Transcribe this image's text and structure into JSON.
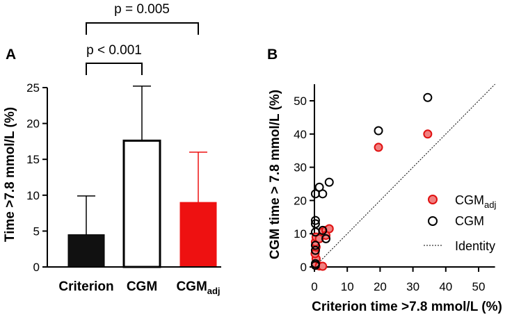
{
  "chart_data": [
    {
      "panel": "A",
      "type": "bar",
      "categories": [
        "Criterion",
        "CGM",
        "CGM_adj"
      ],
      "category_labels": [
        {
          "main": "Criterion",
          "sub": ""
        },
        {
          "main": "CGM",
          "sub": ""
        },
        {
          "main": "CGM",
          "sub": "adj"
        }
      ],
      "values": [
        4.5,
        17.6,
        9.0
      ],
      "error_upper": [
        9.9,
        25.2,
        16.0
      ],
      "colors": [
        "#111111",
        "#ffffff",
        "#ee1111"
      ],
      "edge_colors": [
        "#000000",
        "#000000",
        "#ee1111"
      ],
      "ylabel": "Time >7.8 mmol/L (%)",
      "ylim": [
        0,
        25
      ],
      "yticks": [
        0,
        5,
        10,
        15,
        20,
        25
      ],
      "significance": [
        {
          "label": "p < 0.001",
          "from": "Criterion",
          "to": "CGM"
        },
        {
          "label": "p = 0.005",
          "from": "Criterion",
          "to": "CGM_adj"
        }
      ]
    },
    {
      "panel": "B",
      "type": "scatter",
      "xlabel": "Criterion time >7.8 mmol/L (%)",
      "ylabel": "CGM time > 7.8 mmol/L (%)",
      "xlim": [
        0,
        55
      ],
      "ylim": [
        0,
        55
      ],
      "xticks": [
        0,
        10,
        20,
        30,
        40,
        50
      ],
      "yticks": [
        0,
        10,
        20,
        30,
        40,
        50
      ],
      "series": [
        {
          "name": "CGM_adj",
          "label_main": "CGM",
          "label_sub": "adj",
          "marker": "filled",
          "fill": "#f08080",
          "stroke": "#e01010",
          "points": [
            [
              19.5,
              36
            ],
            [
              34.5,
              40
            ],
            [
              0.3,
              0.5
            ],
            [
              0.5,
              2.5
            ],
            [
              0.2,
              4
            ],
            [
              0.5,
              6
            ],
            [
              0.3,
              7.5
            ],
            [
              0.5,
              9
            ],
            [
              1.5,
              8.5
            ],
            [
              2.5,
              10.5
            ],
            [
              3.5,
              11
            ],
            [
              4.5,
              11.5
            ],
            [
              1.5,
              0.3
            ],
            [
              2.5,
              0.2
            ],
            [
              3.5,
              9.5
            ]
          ]
        },
        {
          "name": "CGM",
          "label_main": "CGM",
          "label_sub": "",
          "marker": "open",
          "fill": "none",
          "stroke": "#000000",
          "points": [
            [
              19.5,
              41
            ],
            [
              34.5,
              51
            ],
            [
              0.3,
              1
            ],
            [
              0.3,
              5
            ],
            [
              0.3,
              6.5
            ],
            [
              0.3,
              10.5
            ],
            [
              0.3,
              13
            ],
            [
              0.3,
              14
            ],
            [
              0.3,
              22
            ],
            [
              1.5,
              24
            ],
            [
              2.5,
              22
            ],
            [
              4.5,
              25.5
            ],
            [
              2.5,
              11
            ],
            [
              3.5,
              8.5
            ],
            [
              0.3,
              0.5
            ]
          ]
        }
      ],
      "identity": {
        "label": "Identity",
        "from": [
          0,
          0
        ],
        "to": [
          55,
          55
        ]
      }
    }
  ]
}
